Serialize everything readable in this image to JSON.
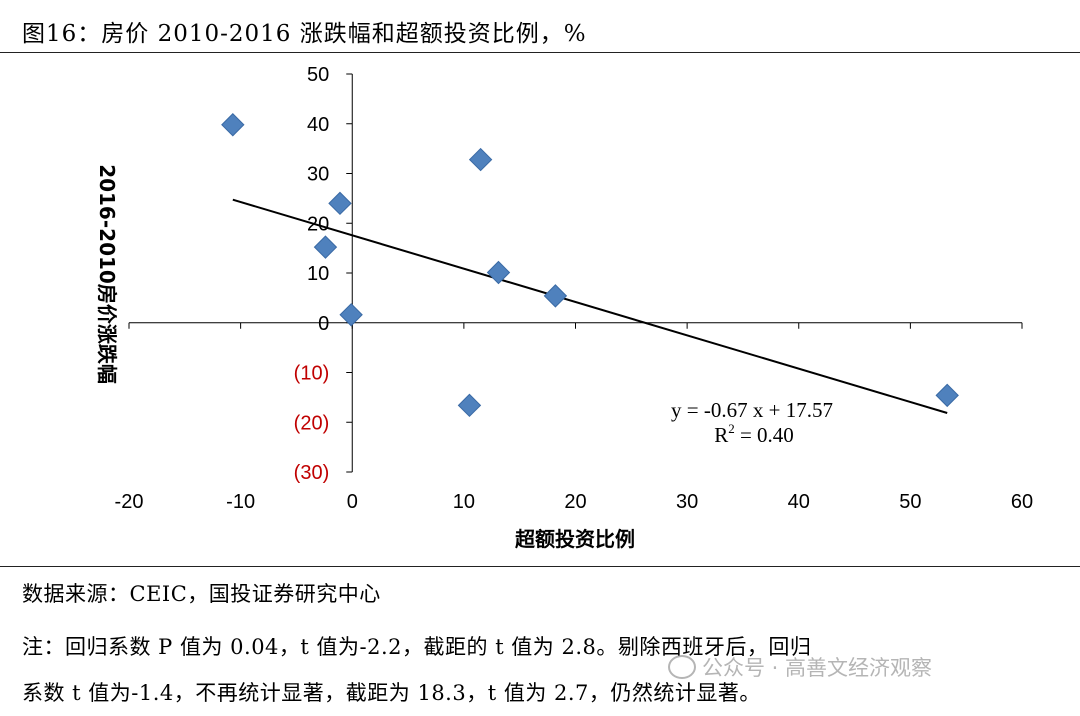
{
  "figure": {
    "title": "图16：房价 2010-2016 涨跌幅和超额投资比例，%"
  },
  "footer": {
    "source": "数据来源：CEIC，国投证券研究中心",
    "note_line1": "注：回归系数 P 值为 0.04，t 值为-2.2，截距的 t 值为 2.8。剔除西班牙后，回归",
    "note_line2": "系数 t 值为-1.4，不再统计显著，截距为 18.3，t 值为 2.7，仍然统计显著。"
  },
  "watermark": {
    "text": "公众号 · 高善文经济观察"
  },
  "chart_data": {
    "type": "scatter",
    "xlabel": "超额投资比例",
    "ylabel": "2016-2010房价涨跌幅",
    "xlim": [
      -20,
      60
    ],
    "ylim": [
      -30,
      50
    ],
    "x_ticks": [
      -20,
      -10,
      0,
      10,
      20,
      30,
      40,
      50,
      60
    ],
    "y_ticks": [
      {
        "value": 50,
        "label": "50"
      },
      {
        "value": 40,
        "label": "40"
      },
      {
        "value": 30,
        "label": "30"
      },
      {
        "value": 20,
        "label": "20"
      },
      {
        "value": 10,
        "label": "10"
      },
      {
        "value": 0,
        "label": "0"
      },
      {
        "value": -10,
        "label": "(10)"
      },
      {
        "value": -20,
        "label": "(20)"
      },
      {
        "value": -30,
        "label": "(30)"
      }
    ],
    "negative_label_color": "#c00000",
    "marker_color": "#4f81bd",
    "points": [
      {
        "x": -10.7,
        "y": 39.8
      },
      {
        "x": -1.1,
        "y": 24.0
      },
      {
        "x": -2.4,
        "y": 15.2
      },
      {
        "x": -0.1,
        "y": 1.6
      },
      {
        "x": 11.5,
        "y": 32.8
      },
      {
        "x": 13.1,
        "y": 10.1
      },
      {
        "x": 18.2,
        "y": 5.4
      },
      {
        "x": 10.5,
        "y": -16.6
      },
      {
        "x": 53.3,
        "y": -14.6
      }
    ],
    "trendline": {
      "slope": -0.67,
      "intercept": 17.57,
      "x_range": [
        -10.7,
        53.3
      ],
      "equation": "y = -0.67 x + 17.57",
      "r2_prefix": "R",
      "r2_sup": "2",
      "r2_suffix": " = 0.40"
    },
    "grid": false
  }
}
